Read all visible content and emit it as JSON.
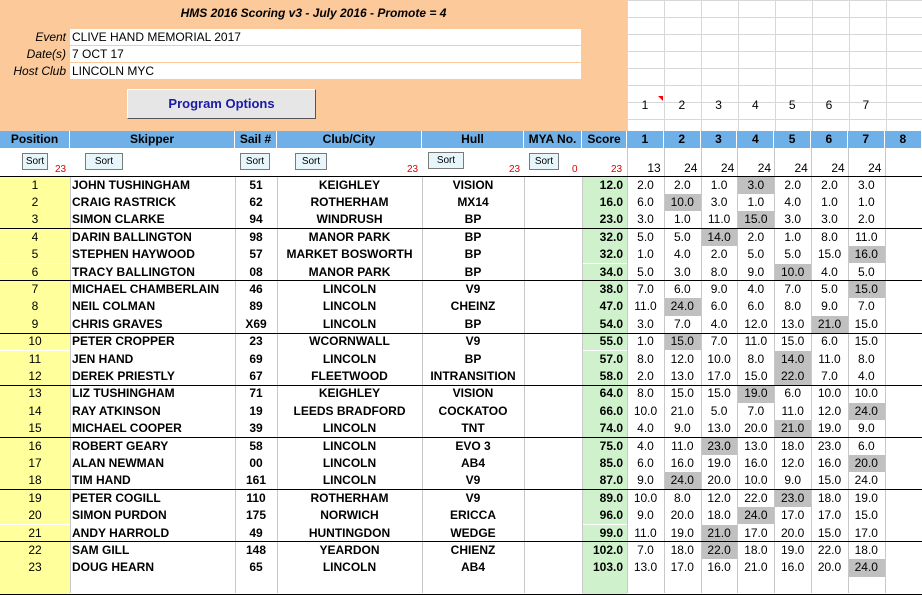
{
  "title": "HMS 2016 Scoring v3 - July 2016 - Promote = 4",
  "event": {
    "label": "Event",
    "value": "CLIVE HAND MEMORIAL 2017"
  },
  "dates": {
    "label": "Date(s)",
    "value": "7 OCT 17"
  },
  "host_club": {
    "label": "Host Club",
    "value": "LINCOLN MYC"
  },
  "program_options_label": "Program Options",
  "race_numbers": [
    "1",
    "2",
    "3",
    "4",
    "5",
    "6",
    "7"
  ],
  "columns": {
    "position": "Position",
    "skipper": "Skipper",
    "sail": "Sail #",
    "club": "Club/City",
    "hull": "Hull",
    "mya": "MYA No.",
    "score": "Score",
    "races": [
      "1",
      "2",
      "3",
      "4",
      "5",
      "6",
      "7",
      "8"
    ]
  },
  "sort_label": "Sort",
  "sort_counts": {
    "position": "23",
    "club": "23",
    "hull": "23",
    "mya": "0",
    "score": "23"
  },
  "race_counts": [
    "13",
    "24",
    "24",
    "24",
    "24",
    "24",
    "24"
  ],
  "results": [
    {
      "pos": "1",
      "skipper": "JOHN TUSHINGHAM",
      "sail": "51",
      "club": "KEIGHLEY",
      "hull": "VISION",
      "score": "12.0",
      "races": [
        "2.0",
        "2.0",
        "1.0",
        "3.0",
        "2.0",
        "2.0",
        "3.0"
      ],
      "drop": [
        3
      ]
    },
    {
      "pos": "2",
      "skipper": "CRAIG RASTRICK",
      "sail": "62",
      "club": "ROTHERHAM",
      "hull": "MX14",
      "score": "16.0",
      "races": [
        "6.0",
        "10.0",
        "3.0",
        "1.0",
        "4.0",
        "1.0",
        "1.0"
      ],
      "drop": [
        1
      ]
    },
    {
      "pos": "3",
      "skipper": "SIMON CLARKE",
      "sail": "94",
      "club": "WINDRUSH",
      "hull": "BP",
      "score": "23.0",
      "races": [
        "3.0",
        "1.0",
        "11.0",
        "15.0",
        "3.0",
        "3.0",
        "2.0"
      ],
      "drop": [
        3
      ]
    },
    {
      "pos": "4",
      "skipper": "DARIN BALLINGTON",
      "sail": "98",
      "club": "MANOR PARK",
      "hull": "BP",
      "score": "32.0",
      "races": [
        "5.0",
        "5.0",
        "14.0",
        "2.0",
        "1.0",
        "8.0",
        "11.0"
      ],
      "drop": [
        2
      ]
    },
    {
      "pos": "5",
      "skipper": "STEPHEN HAYWOOD",
      "sail": "57",
      "club": "MARKET BOSWORTH",
      "hull": "BP",
      "score": "32.0",
      "races": [
        "1.0",
        "4.0",
        "2.0",
        "5.0",
        "5.0",
        "15.0",
        "16.0"
      ],
      "drop": [
        6
      ]
    },
    {
      "pos": "6",
      "skipper": "TRACY BALLINGTON",
      "sail": "08",
      "club": "MANOR PARK",
      "hull": "BP",
      "score": "34.0",
      "races": [
        "5.0",
        "3.0",
        "8.0",
        "9.0",
        "10.0",
        "4.0",
        "5.0"
      ],
      "drop": [
        4
      ]
    },
    {
      "pos": "7",
      "skipper": "MICHAEL CHAMBERLAIN",
      "sail": "46",
      "club": "LINCOLN",
      "hull": "V9",
      "score": "38.0",
      "races": [
        "7.0",
        "6.0",
        "9.0",
        "4.0",
        "7.0",
        "5.0",
        "15.0"
      ],
      "drop": [
        6
      ]
    },
    {
      "pos": "8",
      "skipper": "NEIL COLMAN",
      "sail": "89",
      "club": "LINCOLN",
      "hull": "CHEINZ",
      "score": "47.0",
      "races": [
        "11.0",
        "24.0",
        "6.0",
        "6.0",
        "8.0",
        "9.0",
        "7.0"
      ],
      "drop": [
        1
      ]
    },
    {
      "pos": "9",
      "skipper": "CHRIS GRAVES",
      "sail": "X69",
      "club": "LINCOLN",
      "hull": "BP",
      "score": "54.0",
      "races": [
        "3.0",
        "7.0",
        "4.0",
        "12.0",
        "13.0",
        "21.0",
        "15.0"
      ],
      "drop": [
        5
      ]
    },
    {
      "pos": "10",
      "skipper": "PETER CROPPER",
      "sail": "23",
      "club": "WCORNWALL",
      "hull": "V9",
      "score": "55.0",
      "races": [
        "1.0",
        "15.0",
        "7.0",
        "11.0",
        "15.0",
        "6.0",
        "15.0"
      ],
      "drop": [
        1
      ]
    },
    {
      "pos": "11",
      "skipper": "JEN HAND",
      "sail": "69",
      "club": "LINCOLN",
      "hull": "BP",
      "score": "57.0",
      "races": [
        "8.0",
        "12.0",
        "10.0",
        "8.0",
        "14.0",
        "11.0",
        "8.0"
      ],
      "drop": [
        4
      ]
    },
    {
      "pos": "12",
      "skipper": "DEREK PRIESTLY",
      "sail": "67",
      "club": "FLEETWOOD",
      "hull": "INTRANSITION",
      "score": "58.0",
      "races": [
        "2.0",
        "13.0",
        "17.0",
        "15.0",
        "22.0",
        "7.0",
        "4.0"
      ],
      "drop": [
        4
      ]
    },
    {
      "pos": "13",
      "skipper": "LIZ TUSHINGHAM",
      "sail": "71",
      "club": "KEIGHLEY",
      "hull": "VISION",
      "score": "64.0",
      "races": [
        "8.0",
        "15.0",
        "15.0",
        "19.0",
        "6.0",
        "10.0",
        "10.0"
      ],
      "drop": [
        3
      ]
    },
    {
      "pos": "14",
      "skipper": "RAY ATKINSON",
      "sail": "19",
      "club": "LEEDS BRADFORD",
      "hull": "COCKATOO",
      "score": "66.0",
      "races": [
        "10.0",
        "21.0",
        "5.0",
        "7.0",
        "11.0",
        "12.0",
        "24.0"
      ],
      "drop": [
        6
      ]
    },
    {
      "pos": "15",
      "skipper": "MICHAEL COOPER",
      "sail": "39",
      "club": "LINCOLN",
      "hull": "TNT",
      "score": "74.0",
      "races": [
        "4.0",
        "9.0",
        "13.0",
        "20.0",
        "21.0",
        "19.0",
        "9.0"
      ],
      "drop": [
        4
      ]
    },
    {
      "pos": "16",
      "skipper": "ROBERT GEARY",
      "sail": "58",
      "club": "LINCOLN",
      "hull": "EVO 3",
      "score": "75.0",
      "races": [
        "4.0",
        "11.0",
        "23.0",
        "13.0",
        "18.0",
        "23.0",
        "6.0"
      ],
      "drop": [
        2
      ]
    },
    {
      "pos": "17",
      "skipper": "ALAN NEWMAN",
      "sail": "00",
      "club": "LINCOLN",
      "hull": "AB4",
      "score": "85.0",
      "races": [
        "6.0",
        "16.0",
        "19.0",
        "16.0",
        "12.0",
        "16.0",
        "20.0"
      ],
      "drop": [
        6
      ]
    },
    {
      "pos": "18",
      "skipper": "TIM HAND",
      "sail": "161",
      "club": "LINCOLN",
      "hull": "V9",
      "score": "87.0",
      "races": [
        "9.0",
        "24.0",
        "20.0",
        "10.0",
        "9.0",
        "15.0",
        "24.0"
      ],
      "drop": [
        1
      ]
    },
    {
      "pos": "19",
      "skipper": "PETER COGILL",
      "sail": "110",
      "club": "ROTHERHAM",
      "hull": "V9",
      "score": "89.0",
      "races": [
        "10.0",
        "8.0",
        "12.0",
        "22.0",
        "23.0",
        "18.0",
        "19.0"
      ],
      "drop": [
        4
      ]
    },
    {
      "pos": "20",
      "skipper": "SIMON PURDON",
      "sail": "175",
      "club": "NORWICH",
      "hull": "ERICCA",
      "score": "96.0",
      "races": [
        "9.0",
        "20.0",
        "18.0",
        "24.0",
        "17.0",
        "17.0",
        "15.0"
      ],
      "drop": [
        3
      ]
    },
    {
      "pos": "21",
      "skipper": "ANDY HARROLD",
      "sail": "49",
      "club": "HUNTINGDON",
      "hull": "WEDGE",
      "score": "99.0",
      "races": [
        "11.0",
        "19.0",
        "21.0",
        "17.0",
        "20.0",
        "15.0",
        "17.0"
      ],
      "drop": [
        2
      ]
    },
    {
      "pos": "22",
      "skipper": "SAM GILL",
      "sail": "148",
      "club": "YEARDON",
      "hull": "CHIENZ",
      "score": "102.0",
      "races": [
        "7.0",
        "18.0",
        "22.0",
        "18.0",
        "19.0",
        "22.0",
        "18.0"
      ],
      "drop": [
        2
      ]
    },
    {
      "pos": "23",
      "skipper": "DOUG HEARN",
      "sail": "65",
      "club": "LINCOLN",
      "hull": "AB4",
      "score": "103.0",
      "races": [
        "13.0",
        "17.0",
        "16.0",
        "21.0",
        "16.0",
        "20.0",
        "24.0"
      ],
      "drop": [
        6
      ]
    }
  ],
  "colors": {
    "header_panel": "#fbc99a",
    "column_header": "#6fb0e8",
    "position_col": "#ffff9b",
    "score_col": "#cff1cc",
    "drop_cell": "#c0c0c0",
    "sort_count": "#d00000",
    "button_text": "#1a1aa8"
  }
}
